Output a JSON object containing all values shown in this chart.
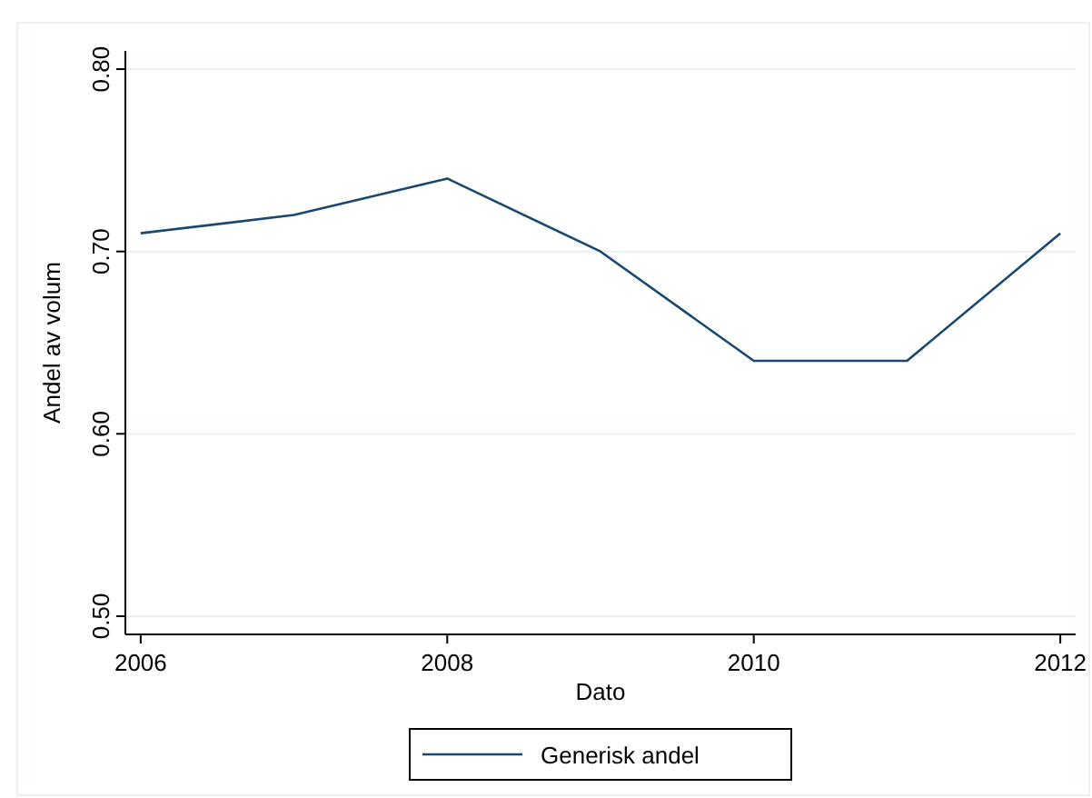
{
  "chart_data": {
    "type": "line",
    "xlabel": "Dato",
    "ylabel": "Andel av volum",
    "x": [
      2006,
      2007,
      2008,
      2009,
      2010,
      2011,
      2012
    ],
    "series": [
      {
        "name": "Generisk andel",
        "color": "#1a476f",
        "values": [
          0.71,
          0.72,
          0.74,
          0.7,
          0.64,
          0.64,
          0.71
        ]
      }
    ],
    "xlim": [
      2005.9,
      2012.1
    ],
    "xticks": [
      2006,
      2008,
      2010,
      2012
    ],
    "ylim": [
      0.49,
      0.81
    ],
    "yticks": [
      {
        "value": 0.5,
        "label": "0.50"
      },
      {
        "value": 0.6,
        "label": "0.60"
      },
      {
        "value": 0.7,
        "label": "0.70"
      },
      {
        "value": 0.8,
        "label": "0.80"
      }
    ],
    "grid": "y",
    "legend": "bottom",
    "marker": "none",
    "line_style": "solid"
  }
}
